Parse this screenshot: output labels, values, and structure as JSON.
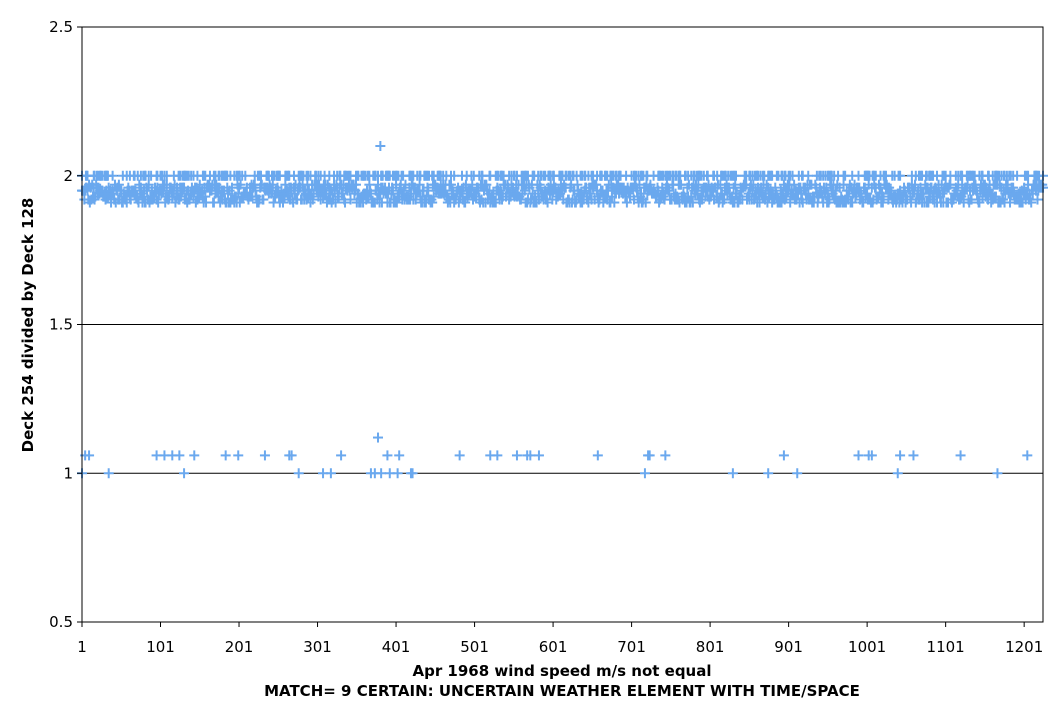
{
  "chart_data": {
    "type": "scatter",
    "title": "",
    "xlabel": "Apr 1968 wind speed m/s not equal",
    "xlabel_line2": "MATCH= 9 CERTAIN: UNCERTAIN WEATHER ELEMENT WITH TIME/SPACE",
    "ylabel": "Deck 254 divided by Deck 128",
    "xlim": [
      1,
      1225
    ],
    "ylim": [
      0.5,
      2.5
    ],
    "x_ticks": [
      "1",
      "101",
      "201",
      "301",
      "401",
      "501",
      "601",
      "701",
      "801",
      "901",
      "1001",
      "1101",
      "1201"
    ],
    "y_ticks": [
      "0.5",
      "1",
      "1.5",
      "2",
      "2.5"
    ],
    "grid": "horizontal",
    "legend": "none",
    "marker": "plus",
    "colors": {
      "series": "#6AA8EE",
      "grid": "#000000"
    },
    "dense_band": {
      "x_range": [
        1,
        1225
      ],
      "levels": [
        1.91,
        1.92,
        1.93,
        1.94,
        1.95,
        1.96,
        1.97
      ],
      "note_levels_upper": [
        2.0
      ]
    },
    "series": [
      {
        "points_low": [
          [
            1,
            1.0
          ],
          [
            5,
            1.06
          ],
          [
            10,
            1.06
          ],
          [
            35,
            1.0
          ],
          [
            96,
            1.06
          ],
          [
            106,
            1.06
          ],
          [
            116,
            1.06
          ],
          [
            125,
            1.06
          ],
          [
            131,
            1.0
          ],
          [
            144,
            1.06
          ],
          [
            184,
            1.06
          ],
          [
            200,
            1.06
          ],
          [
            234,
            1.06
          ],
          [
            265,
            1.06
          ],
          [
            268,
            1.06
          ],
          [
            277,
            1.0
          ],
          [
            308,
            1.0
          ],
          [
            318,
            1.0
          ],
          [
            331,
            1.06
          ],
          [
            369,
            1.0
          ],
          [
            374,
            1.0
          ],
          [
            378,
            1.12
          ],
          [
            382,
            1.0
          ],
          [
            390,
            1.06
          ],
          [
            393,
            1.0
          ],
          [
            403,
            1.0
          ],
          [
            405,
            1.06
          ],
          [
            420,
            1.0
          ],
          [
            422,
            1.0
          ],
          [
            482,
            1.06
          ],
          [
            521,
            1.06
          ],
          [
            530,
            1.06
          ],
          [
            555,
            1.06
          ],
          [
            568,
            1.06
          ],
          [
            572,
            1.06
          ],
          [
            583,
            1.06
          ],
          [
            658,
            1.06
          ],
          [
            718,
            1.0
          ],
          [
            722,
            1.06
          ],
          [
            724,
            1.06
          ],
          [
            744,
            1.06
          ],
          [
            830,
            1.0
          ],
          [
            875,
            1.0
          ],
          [
            895,
            1.06
          ],
          [
            912,
            1.0
          ],
          [
            990,
            1.06
          ],
          [
            1003,
            1.06
          ],
          [
            1007,
            1.06
          ],
          [
            1040,
            1.0
          ],
          [
            1043,
            1.06
          ],
          [
            1060,
            1.06
          ],
          [
            1120,
            1.06
          ],
          [
            1167,
            1.0
          ],
          [
            1205,
            1.06
          ]
        ],
        "points_outlier": [
          [
            381,
            2.1
          ]
        ]
      }
    ]
  }
}
